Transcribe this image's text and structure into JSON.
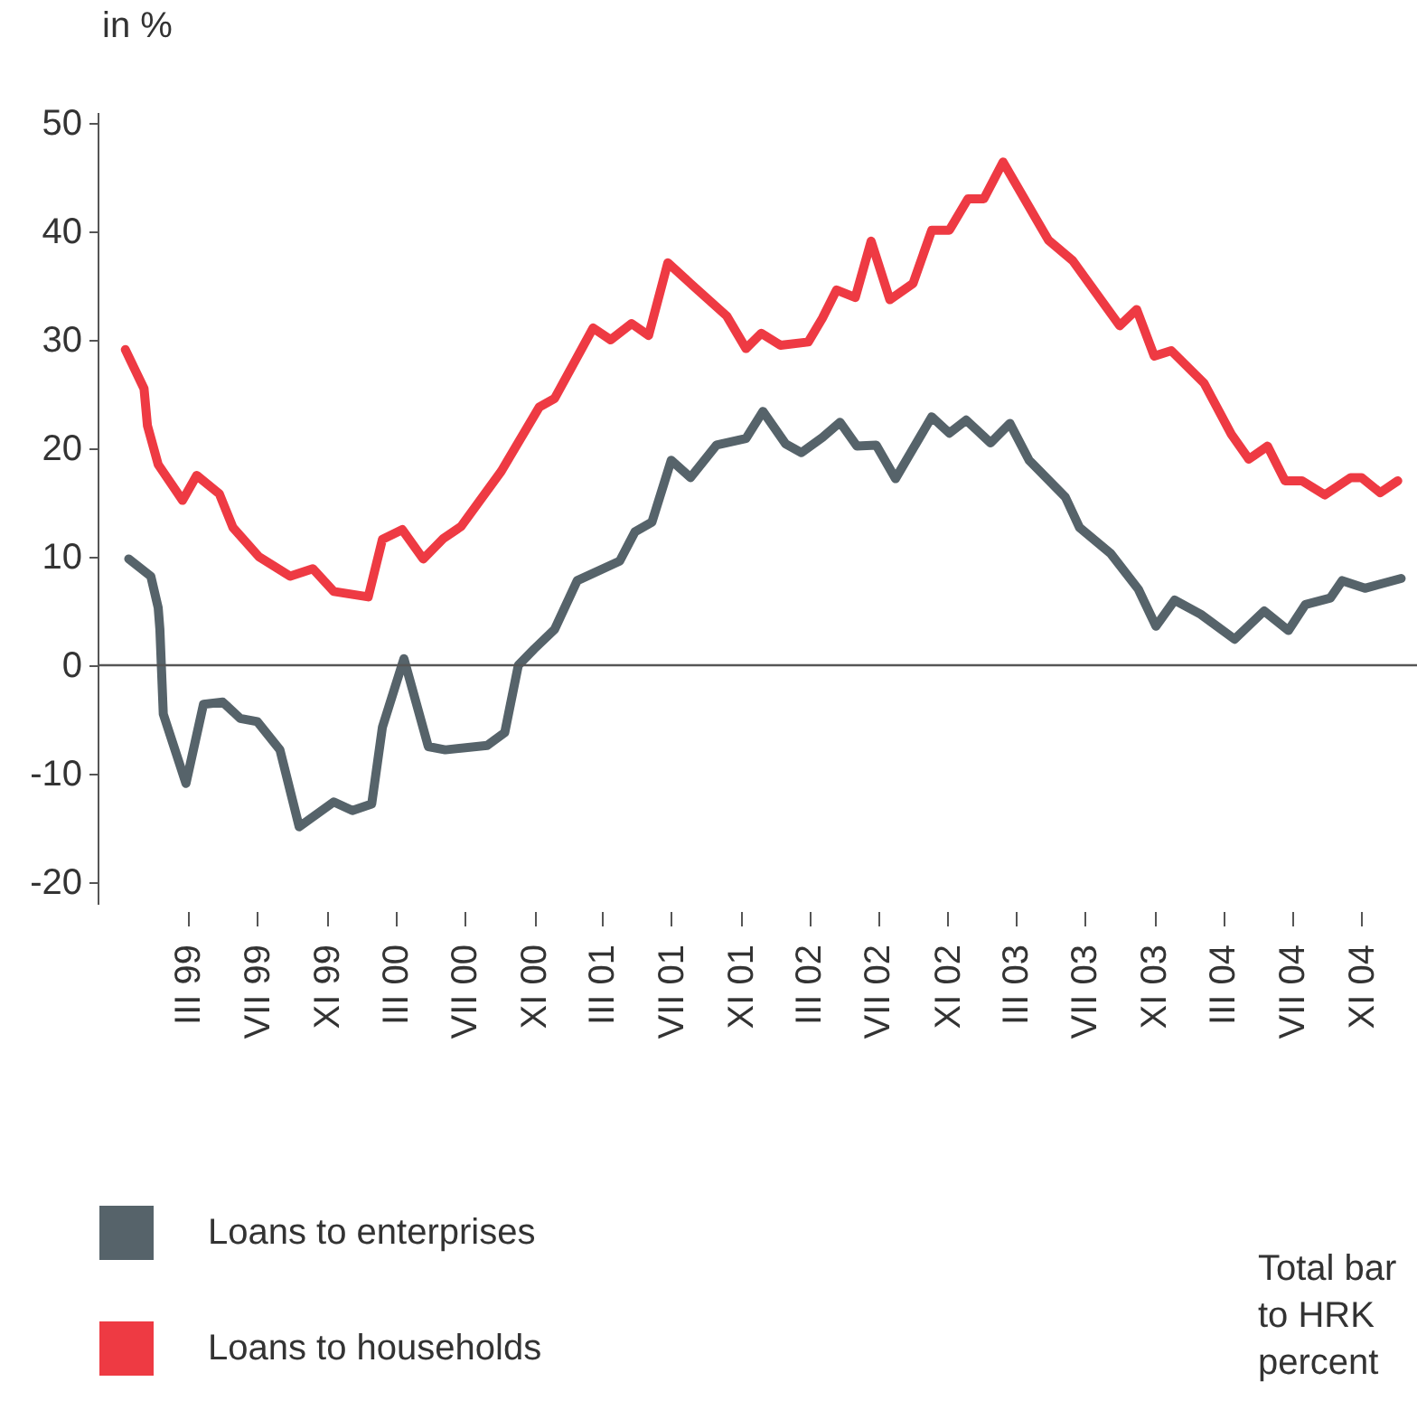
{
  "chart_data": {
    "type": "line",
    "ylabel": "in %",
    "xlim": [
      "1998-09-22",
      "2005-02-07"
    ],
    "xticks": [
      {
        "value": "1999-03-01",
        "label": "III 99"
      },
      {
        "value": "1999-07-01",
        "label": "VII 99"
      },
      {
        "value": "1999-11-01",
        "label": "XI 99"
      },
      {
        "value": "2000-03-01",
        "label": "III 00"
      },
      {
        "value": "2000-07-01",
        "label": "VII 00"
      },
      {
        "value": "2000-11-01",
        "label": "XI 00"
      },
      {
        "value": "2001-03-01",
        "label": "III 01"
      },
      {
        "value": "2001-07-01",
        "label": "VII 01"
      },
      {
        "value": "2001-11-01",
        "label": "XI 01"
      },
      {
        "value": "2002-03-01",
        "label": "III 02"
      },
      {
        "value": "2002-07-01",
        "label": "VII 02"
      },
      {
        "value": "2002-11-01",
        "label": "XI 02"
      },
      {
        "value": "2003-03-01",
        "label": "III 03"
      },
      {
        "value": "2003-07-01",
        "label": "VII 03"
      },
      {
        "value": "2003-11-01",
        "label": "XI 03"
      },
      {
        "value": "2004-03-01",
        "label": "III 04"
      },
      {
        "value": "2004-07-01",
        "label": "VII 04"
      },
      {
        "value": "2004-11-01",
        "label": "XI 04"
      }
    ],
    "ylim": [
      -22,
      51
    ],
    "yticks": [
      -20,
      -10,
      0,
      10,
      20,
      30,
      40,
      50
    ],
    "legend": "bottom left",
    "ref_lines": [
      {
        "axis": "y",
        "value": 0,
        "color": "#555555"
      }
    ],
    "annotations": [
      "Total bar\nto HRK\npercent"
    ],
    "series": [
      {
        "name": "Loans to enterprises",
        "color": "#56636a",
        "x": [
          "1998-11-16",
          "1998-12-25",
          "1999-01-07",
          "1999-01-10",
          "1999-01-16",
          "1999-02-25",
          "1999-03-28",
          "1999-05-01",
          "1999-06-01",
          "1999-07-01",
          "1999-08-10",
          "1999-09-13",
          "1999-11-13",
          "1999-12-16",
          "2000-01-19",
          "2000-02-07",
          "2000-03-16",
          "2000-04-28",
          "2000-05-28",
          "2000-08-10",
          "2000-09-10",
          "2000-10-04",
          "2000-11-01",
          "2000-12-07",
          "2001-01-16",
          "2001-04-01",
          "2001-04-28",
          "2001-05-28",
          "2001-07-01",
          "2001-08-04",
          "2001-09-19",
          "2001-11-10",
          "2001-12-10",
          "2002-01-19",
          "2002-02-16",
          "2002-03-25",
          "2002-04-25",
          "2002-05-25",
          "2002-06-28",
          "2002-08-01",
          "2002-10-04",
          "2002-11-04",
          "2002-12-04",
          "2003-01-16",
          "2003-02-19",
          "2003-03-25",
          "2003-05-28",
          "2003-06-22",
          "2003-08-16",
          "2003-10-04",
          "2003-11-04",
          "2003-12-07",
          "2004-01-22",
          "2004-03-22",
          "2004-05-13",
          "2004-06-25",
          "2004-07-25",
          "2004-09-07",
          "2004-09-28",
          "2004-11-07",
          "2005-01-10"
        ],
        "values": [
          9.8,
          8.2,
          5.3,
          3.3,
          -4.5,
          -10.9,
          -3.6,
          -3.4,
          -4.9,
          -5.2,
          -7.8,
          -14.9,
          -12.6,
          -13.4,
          -12.8,
          -5.7,
          0.6,
          -7.5,
          -7.8,
          -7.4,
          -6.2,
          0.0,
          1.5,
          3.3,
          7.8,
          9.6,
          12.3,
          13.2,
          18.9,
          17.3,
          20.3,
          20.9,
          23.4,
          20.4,
          19.6,
          21.0,
          22.4,
          20.2,
          20.3,
          17.2,
          22.9,
          21.4,
          22.6,
          20.5,
          22.3,
          18.9,
          15.5,
          12.7,
          10.3,
          7.0,
          3.6,
          6.0,
          4.7,
          2.4,
          5.0,
          3.2,
          5.6,
          6.2,
          7.8,
          7.1,
          8.0
        ]
      },
      {
        "name": "Loans to households",
        "color": "#ee3a43",
        "x": [
          "1998-11-10",
          "1998-12-13",
          "1998-12-19",
          "1999-01-07",
          "1999-02-19",
          "1999-03-16",
          "1999-04-25",
          "1999-05-19",
          "1999-07-04",
          "1999-08-28",
          "1999-10-07",
          "1999-11-13",
          "2000-01-13",
          "2000-02-07",
          "2000-03-13",
          "2000-04-19",
          "2000-05-25",
          "2000-06-25",
          "2000-09-04",
          "2000-11-10",
          "2000-12-07",
          "2001-02-13",
          "2001-03-16",
          "2001-04-22",
          "2001-05-22",
          "2001-06-25",
          "2001-08-04",
          "2001-10-07",
          "2001-11-10",
          "2001-12-07",
          "2002-01-10",
          "2002-02-28",
          "2002-03-25",
          "2002-04-19",
          "2002-05-22",
          "2002-06-19",
          "2002-07-22",
          "2002-09-01",
          "2002-10-04",
          "2002-11-04",
          "2002-12-07",
          "2003-01-04",
          "2003-02-07",
          "2003-04-28",
          "2003-06-10",
          "2003-09-01",
          "2003-10-01",
          "2003-11-01",
          "2003-12-01",
          "2004-01-28",
          "2004-03-16",
          "2004-04-16",
          "2004-05-19",
          "2004-06-19",
          "2004-07-19",
          "2004-08-28",
          "2004-10-13",
          "2004-11-01",
          "2004-12-04",
          "2005-01-04"
        ],
        "values": [
          29.1,
          25.5,
          22.1,
          18.5,
          15.2,
          17.5,
          15.8,
          12.7,
          10.0,
          8.2,
          8.9,
          6.8,
          6.3,
          11.6,
          12.5,
          9.8,
          11.7,
          12.8,
          17.9,
          23.8,
          24.6,
          31.1,
          30.0,
          31.5,
          30.4,
          37.1,
          35.2,
          32.2,
          29.2,
          30.6,
          29.5,
          29.8,
          32.0,
          34.6,
          33.9,
          39.1,
          33.7,
          35.2,
          40.1,
          40.1,
          43.0,
          43.0,
          46.4,
          39.2,
          37.3,
          31.3,
          32.8,
          28.5,
          29.0,
          26.0,
          21.3,
          19.0,
          20.2,
          17.0,
          17.0,
          15.7,
          17.3,
          17.3,
          15.9,
          17.0
        ]
      }
    ]
  }
}
